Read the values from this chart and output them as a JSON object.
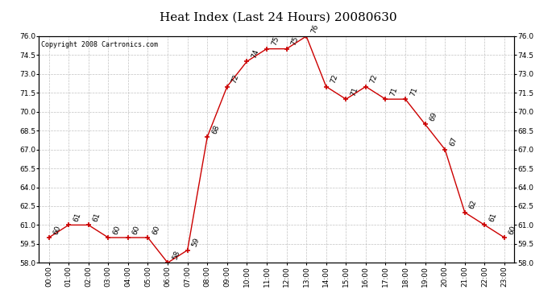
{
  "title": "Heat Index (Last 24 Hours) 20080630",
  "copyright": "Copyright 2008 Cartronics.com",
  "hours": [
    "00:00",
    "01:00",
    "02:00",
    "03:00",
    "04:00",
    "05:00",
    "06:00",
    "07:00",
    "08:00",
    "09:00",
    "10:00",
    "11:00",
    "12:00",
    "13:00",
    "14:00",
    "15:00",
    "16:00",
    "17:00",
    "18:00",
    "19:00",
    "20:00",
    "21:00",
    "22:00",
    "23:00"
  ],
  "values": [
    60,
    61,
    61,
    60,
    60,
    60,
    58,
    59,
    68,
    72,
    74,
    75,
    75,
    76,
    72,
    71,
    72,
    71,
    71,
    69,
    67,
    62,
    61,
    60
  ],
  "ylim": [
    58.0,
    76.0
  ],
  "yticks": [
    58.0,
    59.5,
    61.0,
    62.5,
    64.0,
    65.5,
    67.0,
    68.5,
    70.0,
    71.5,
    73.0,
    74.5,
    76.0
  ],
  "line_color": "#cc0000",
  "marker": "+",
  "marker_color": "#cc0000",
  "bg_color": "#ffffff",
  "grid_color": "#bbbbbb",
  "title_fontsize": 11,
  "label_fontsize": 6.5,
  "annot_fontsize": 6.5,
  "copyright_fontsize": 6
}
